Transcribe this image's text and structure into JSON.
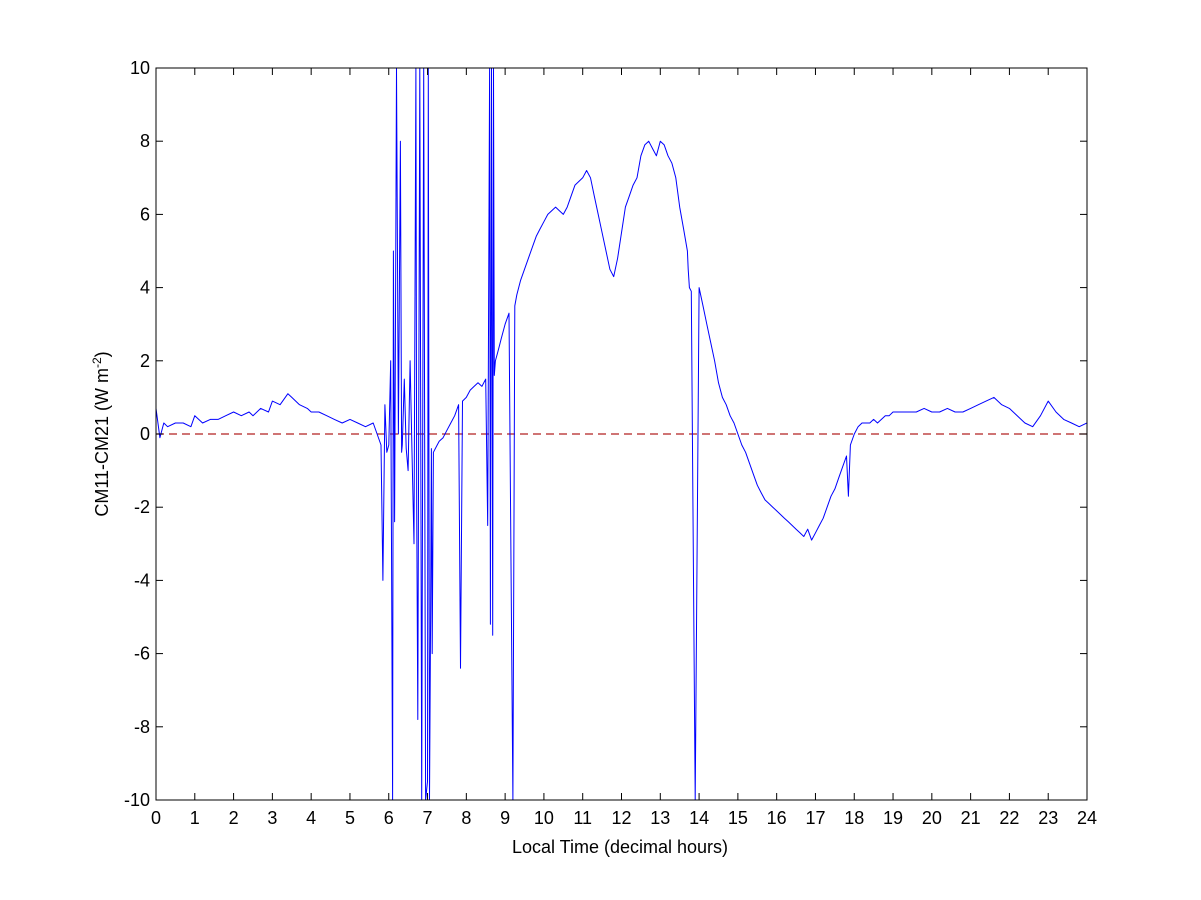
{
  "chart_data": {
    "type": "line",
    "title": "",
    "xlabel": "Local Time (decimal hours)",
    "ylabel_main": "CM11-CM21 (W m",
    "ylabel_sup": "-2",
    "ylabel_tail": ")",
    "xlim": [
      0,
      24
    ],
    "ylim": [
      -10,
      10
    ],
    "xticks": [
      0,
      1,
      2,
      3,
      4,
      5,
      6,
      7,
      8,
      9,
      10,
      11,
      12,
      13,
      14,
      15,
      16,
      17,
      18,
      19,
      20,
      21,
      22,
      23,
      24
    ],
    "yticks": [
      -10,
      -8,
      -6,
      -4,
      -2,
      0,
      2,
      4,
      6,
      8,
      10
    ],
    "grid": false,
    "legend": "none",
    "colors": {
      "series": "#0000ff",
      "reference": "#b22222",
      "axes": "#000000"
    },
    "series": [
      {
        "x": [
          0.0,
          0.1,
          0.2,
          0.3,
          0.5,
          0.7,
          0.9,
          1.0,
          1.2,
          1.4,
          1.6,
          1.8,
          2.0,
          2.2,
          2.4,
          2.5,
          2.7,
          2.9,
          3.0,
          3.2,
          3.4,
          3.5,
          3.7,
          3.9,
          4.0,
          4.2,
          4.4,
          4.6,
          4.8,
          5.0,
          5.2,
          5.4,
          5.6,
          5.7,
          5.8,
          5.85,
          5.9,
          5.95,
          6.0,
          6.05,
          6.1,
          6.12,
          6.15,
          6.18,
          6.2,
          6.25,
          6.3,
          6.33,
          6.35,
          6.4,
          6.45,
          6.5,
          6.55,
          6.6,
          6.65,
          6.7,
          6.72,
          6.75,
          6.8,
          6.85,
          6.9,
          6.95,
          7.0,
          7.02,
          7.05,
          7.08,
          7.1,
          7.12,
          7.15,
          7.2,
          7.25,
          7.3,
          7.4,
          7.5,
          7.6,
          7.7,
          7.8,
          7.85,
          7.9,
          8.0,
          8.1,
          8.2,
          8.3,
          8.4,
          8.5,
          8.55,
          8.6,
          8.62,
          8.65,
          8.68,
          8.7,
          8.72,
          8.75,
          8.8,
          8.85,
          8.9,
          9.0,
          9.1,
          9.2,
          9.25,
          9.3,
          9.4,
          9.5,
          9.6,
          9.7,
          9.8,
          9.9,
          10.0,
          10.1,
          10.2,
          10.3,
          10.4,
          10.5,
          10.6,
          10.7,
          10.8,
          10.9,
          11.0,
          11.1,
          11.2,
          11.3,
          11.4,
          11.5,
          11.6,
          11.7,
          11.8,
          11.9,
          12.0,
          12.1,
          12.2,
          12.3,
          12.4,
          12.5,
          12.6,
          12.7,
          12.8,
          12.9,
          13.0,
          13.1,
          13.2,
          13.3,
          13.4,
          13.5,
          13.6,
          13.7,
          13.72,
          13.75,
          13.8,
          13.9,
          14.0,
          14.1,
          14.2,
          14.3,
          14.4,
          14.5,
          14.6,
          14.7,
          14.8,
          14.9,
          15.0,
          15.1,
          15.2,
          15.3,
          15.4,
          15.5,
          15.6,
          15.7,
          15.8,
          15.9,
          16.0,
          16.1,
          16.2,
          16.3,
          16.4,
          16.5,
          16.6,
          16.7,
          16.8,
          16.9,
          17.0,
          17.1,
          17.2,
          17.3,
          17.4,
          17.5,
          17.6,
          17.7,
          17.8,
          17.85,
          17.9,
          18.0,
          18.1,
          18.2,
          18.3,
          18.4,
          18.5,
          18.6,
          18.7,
          18.8,
          18.9,
          19.0,
          19.2,
          19.4,
          19.6,
          19.8,
          20.0,
          20.2,
          20.4,
          20.6,
          20.8,
          21.0,
          21.2,
          21.4,
          21.6,
          21.8,
          22.0,
          22.2,
          22.4,
          22.6,
          22.8,
          23.0,
          23.2,
          23.4,
          23.6,
          23.8,
          24.0
        ],
        "y": [
          0.7,
          -0.1,
          0.3,
          0.2,
          0.3,
          0.3,
          0.2,
          0.5,
          0.3,
          0.4,
          0.4,
          0.5,
          0.6,
          0.5,
          0.6,
          0.5,
          0.7,
          0.6,
          0.9,
          0.8,
          1.1,
          1.0,
          0.8,
          0.7,
          0.6,
          0.6,
          0.5,
          0.4,
          0.3,
          0.4,
          0.3,
          0.2,
          0.3,
          0.0,
          -0.3,
          -4.0,
          0.8,
          -0.5,
          -0.3,
          2.0,
          -10.0,
          5.0,
          -2.4,
          4.5,
          10.0,
          0.0,
          8.0,
          -0.5,
          -0.3,
          1.5,
          -0.4,
          -1.0,
          2.0,
          -0.5,
          -3.0,
          10.0,
          -2.0,
          -7.8,
          10.0,
          -10.0,
          10.0,
          -10.0,
          -9.5,
          10.0,
          -10.0,
          -5.0,
          -0.4,
          -6.0,
          -0.5,
          -0.4,
          -0.3,
          -0.2,
          -0.1,
          0.1,
          0.3,
          0.5,
          0.8,
          -6.4,
          0.9,
          1.0,
          1.2,
          1.3,
          1.4,
          1.3,
          1.5,
          -2.5,
          10.0,
          -5.2,
          10.0,
          -5.5,
          10.0,
          1.6,
          2.0,
          2.2,
          2.4,
          2.6,
          3.0,
          3.3,
          -10.0,
          3.5,
          3.8,
          4.2,
          4.5,
          4.8,
          5.1,
          5.4,
          5.6,
          5.8,
          6.0,
          6.1,
          6.2,
          6.1,
          6.0,
          6.2,
          6.5,
          6.8,
          6.9,
          7.0,
          7.2,
          7.0,
          6.5,
          6.0,
          5.5,
          5.0,
          4.5,
          4.3,
          4.8,
          5.5,
          6.2,
          6.5,
          6.8,
          7.0,
          7.6,
          7.9,
          8.0,
          7.8,
          7.6,
          8.0,
          7.9,
          7.6,
          7.4,
          7.0,
          6.2,
          5.6,
          5.0,
          4.5,
          4.0,
          3.9,
          -10.0,
          4.0,
          3.5,
          3.0,
          2.5,
          2.0,
          1.4,
          1.0,
          0.8,
          0.5,
          0.3,
          0.0,
          -0.3,
          -0.5,
          -0.8,
          -1.1,
          -1.4,
          -1.6,
          -1.8,
          -1.9,
          -2.0,
          -2.1,
          -2.2,
          -2.3,
          -2.4,
          -2.5,
          -2.6,
          -2.7,
          -2.8,
          -2.6,
          -2.9,
          -2.7,
          -2.5,
          -2.3,
          -2.0,
          -1.7,
          -1.5,
          -1.2,
          -0.9,
          -0.6,
          -1.7,
          -0.3,
          0.0,
          0.2,
          0.3,
          0.3,
          0.3,
          0.4,
          0.3,
          0.4,
          0.5,
          0.5,
          0.6,
          0.6,
          0.6,
          0.6,
          0.7,
          0.6,
          0.6,
          0.7,
          0.6,
          0.6,
          0.7,
          0.8,
          0.9,
          1.0,
          0.8,
          0.7,
          0.5,
          0.3,
          0.2,
          0.5,
          0.9,
          0.6,
          0.4,
          0.3,
          0.2,
          0.3
        ]
      },
      {
        "x": [
          0,
          24
        ],
        "y": [
          0,
          0
        ],
        "style": "dashed"
      }
    ]
  }
}
